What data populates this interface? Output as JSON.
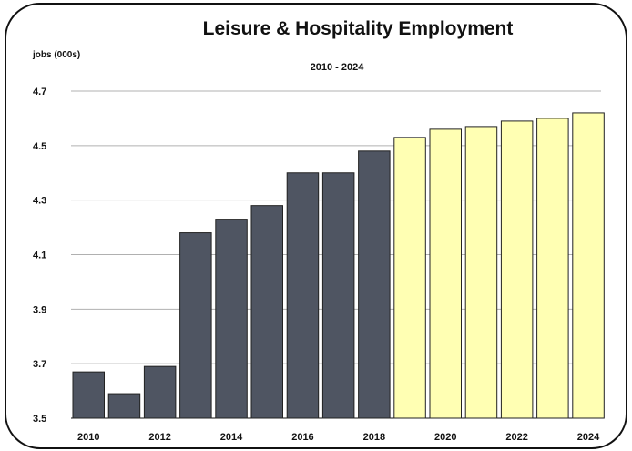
{
  "chart_data": {
    "type": "bar",
    "title": "Leisure & Hospitality Employment",
    "subtitle": "2010 - 2024",
    "ylabel": "jobs (000s)",
    "xlabel": "",
    "categories": [
      "2010",
      "2011",
      "2012",
      "2013",
      "2014",
      "2015",
      "2016",
      "2017",
      "2018",
      "2019",
      "2020",
      "2021",
      "2022",
      "2023",
      "2024"
    ],
    "x_tick_labels": [
      "2010",
      "2012",
      "2014",
      "2016",
      "2018",
      "2020",
      "2022",
      "2024"
    ],
    "y_tick_labels": [
      "3.5",
      "3.7",
      "3.9",
      "4.1",
      "4.3",
      "4.5",
      "4.7"
    ],
    "ylim": [
      3.5,
      4.7
    ],
    "grid": true,
    "legend": "none",
    "series": [
      {
        "values": [
          3.67,
          3.59,
          3.69,
          4.18,
          4.23,
          4.28,
          4.4,
          4.4,
          4.48,
          4.53,
          4.56,
          4.57,
          4.59,
          4.6,
          4.62
        ],
        "colors": [
          "#4f5562",
          "#4f5562",
          "#4f5562",
          "#4f5562",
          "#4f5562",
          "#4f5562",
          "#4f5562",
          "#4f5562",
          "#4f5562",
          "#ffffb3",
          "#ffffb3",
          "#ffffb3",
          "#ffffb3",
          "#ffffb3",
          "#ffffb3"
        ]
      }
    ],
    "colors": {
      "historical": "#4f5562",
      "projected": "#ffffb3",
      "gridline": "#b0b0b0",
      "bar_border": "#222222"
    }
  }
}
